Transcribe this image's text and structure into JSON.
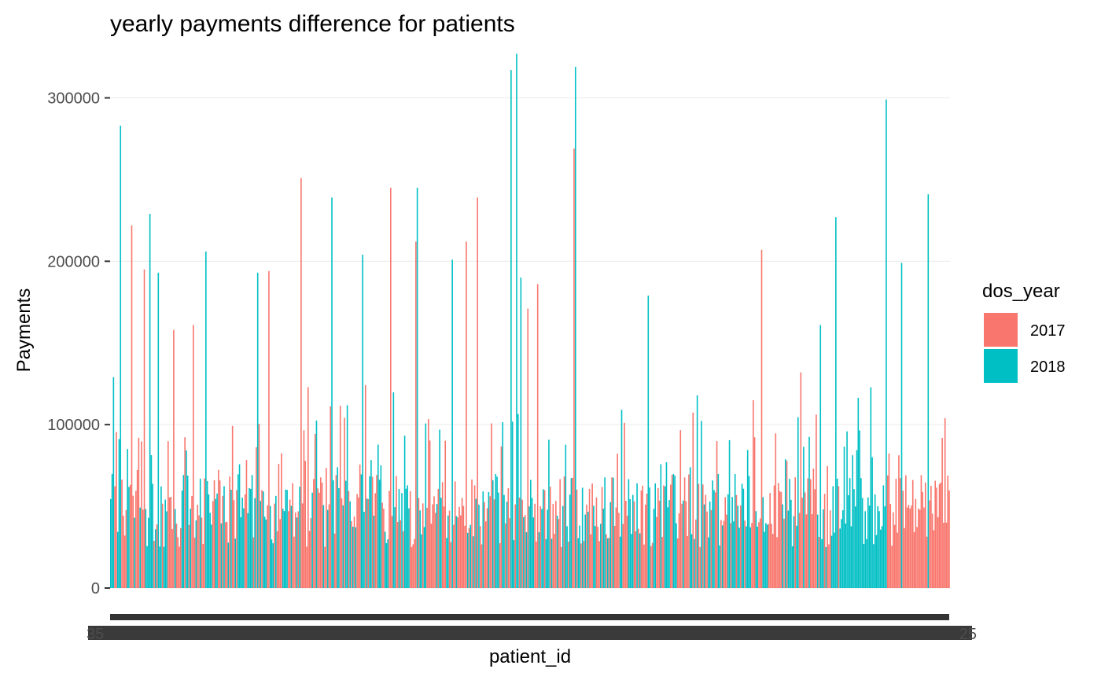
{
  "chart_data": {
    "type": "bar",
    "title": "yearly payments difference for patients",
    "xlabel": "patient_id",
    "ylabel": "Payments",
    "ylim": [
      0,
      332000
    ],
    "yticks": [
      0,
      100000,
      200000,
      300000
    ],
    "ytick_labels": [
      "0",
      "100000",
      "200000",
      "300000"
    ],
    "x_tick_labels_note": "overplotted, illegible",
    "x_tick_label_visible_fragments": [
      "35",
      "25"
    ],
    "legend": {
      "title": "dos_year",
      "position": "right",
      "entries": [
        {
          "label": "2017",
          "color": "#F8766D"
        },
        {
          "label": "2018",
          "color": "#00BFC4"
        }
      ]
    },
    "grid": true,
    "bar_count": 600,
    "series": [
      {
        "name": "2017",
        "color": "#F8766D",
        "highlight_values": [
          222000,
          195000,
          158000,
          161000,
          251000,
          194000,
          245000,
          212000,
          239000,
          212000,
          171000,
          269000,
          186000,
          207000,
          132000,
          104000
        ]
      },
      {
        "name": "2018",
        "color": "#00BFC4",
        "highlight_values": [
          129000,
          283000,
          229000,
          193000,
          206000,
          193000,
          239000,
          204000,
          245000,
          201000,
          317000,
          327000,
          319000,
          190000,
          179000,
          227000,
          299000,
          199000,
          241000,
          161000
        ]
      }
    ]
  }
}
